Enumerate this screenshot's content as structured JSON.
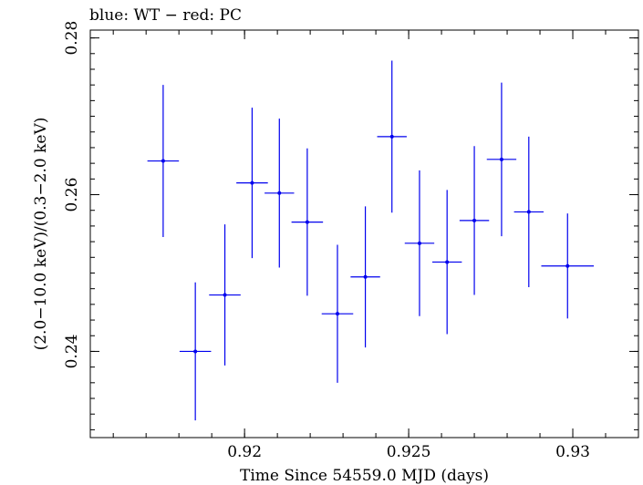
{
  "chart_data": {
    "type": "scatter",
    "title": "blue: WT − red: PC",
    "xlabel": "Time Since 54559.0 MJD (days)",
    "ylabel": "(2.0−10.0 keV)/(0.3−2.0 keV)",
    "xlim": [
      0.9153,
      0.932
    ],
    "ylim": [
      0.229,
      0.281
    ],
    "x_ticks": [
      {
        "value": 0.92,
        "label": "0.92"
      },
      {
        "value": 0.925,
        "label": "0.925"
      },
      {
        "value": 0.93,
        "label": "0.93"
      }
    ],
    "x_minor_step": 0.001,
    "y_ticks": [
      {
        "value": 0.24,
        "label": "0.24"
      },
      {
        "value": 0.26,
        "label": "0.26"
      },
      {
        "value": 0.28,
        "label": "0.28"
      }
    ],
    "y_minor_step": 0.002,
    "grid": false,
    "series": [
      {
        "color": "#0000ee",
        "points": [
          {
            "x": 0.91752,
            "xerr": 0.00048,
            "y": 0.2643,
            "yerr": 0.0097
          },
          {
            "x": 0.9185,
            "xerr": 0.00048,
            "y": 0.24,
            "yerr": 0.0088
          },
          {
            "x": 0.9194,
            "xerr": 0.00048,
            "y": 0.2472,
            "yerr": 0.009
          },
          {
            "x": 0.92023,
            "xerr": 0.00048,
            "y": 0.2615,
            "yerr": 0.0096
          },
          {
            "x": 0.92106,
            "xerr": 0.00045,
            "y": 0.2602,
            "yerr": 0.0095
          },
          {
            "x": 0.92191,
            "xerr": 0.00048,
            "y": 0.2565,
            "yerr": 0.0094
          },
          {
            "x": 0.92283,
            "xerr": 0.00048,
            "y": 0.2448,
            "yerr": 0.0088
          },
          {
            "x": 0.92368,
            "xerr": 0.00045,
            "y": 0.2495,
            "yerr": 0.009
          },
          {
            "x": 0.92449,
            "xerr": 0.00045,
            "y": 0.2674,
            "yerr": 0.0097
          },
          {
            "x": 0.92533,
            "xerr": 0.00045,
            "y": 0.2538,
            "yerr": 0.0093
          },
          {
            "x": 0.92617,
            "xerr": 0.00045,
            "y": 0.2514,
            "yerr": 0.0092
          },
          {
            "x": 0.927,
            "xerr": 0.00045,
            "y": 0.2567,
            "yerr": 0.0095
          },
          {
            "x": 0.92783,
            "xerr": 0.00045,
            "y": 0.2645,
            "yerr": 0.0098
          },
          {
            "x": 0.92866,
            "xerr": 0.00045,
            "y": 0.2578,
            "yerr": 0.0096
          },
          {
            "x": 0.92984,
            "xerr": 0.0008,
            "y": 0.2509,
            "yerr": 0.0067
          }
        ]
      }
    ]
  }
}
